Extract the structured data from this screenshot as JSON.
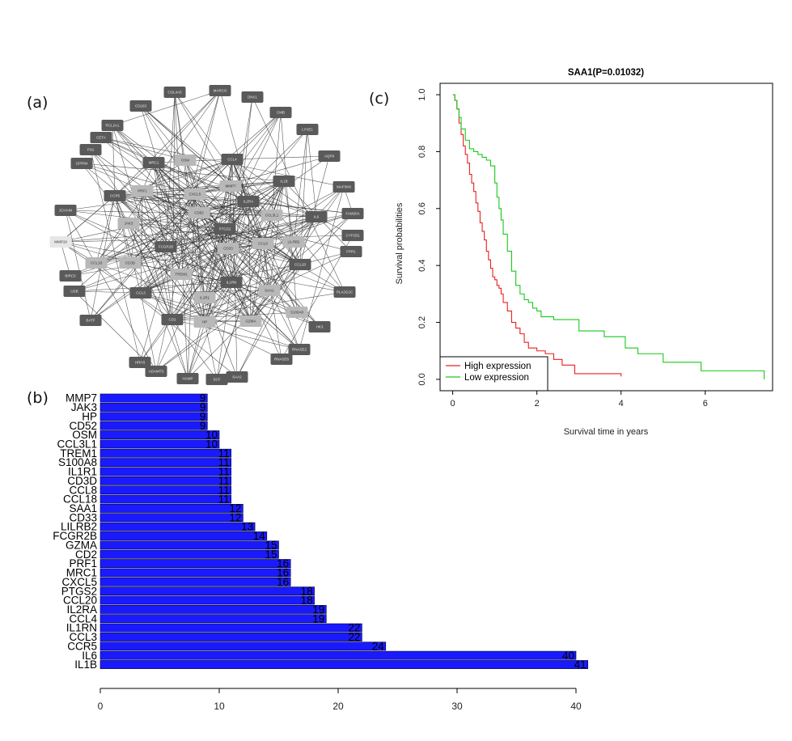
{
  "panels": {
    "a": "(a)",
    "b": "(b)",
    "c": "(c)"
  },
  "colors": {
    "bar_fill": "#1a1aff",
    "bar_stroke": "#000033",
    "node_dark": "#5a5a5a",
    "node_light": "#b8b8b8",
    "node_lightest": "#e6e6e6",
    "edge": "#333333",
    "high_expression": "#e8201f",
    "low_expression": "#19c919"
  },
  "network": {
    "nodes": [
      "COL4A5",
      "MARCO",
      "DKK1",
      "CMB",
      "LYVE1",
      "AQP9",
      "MAP3K8",
      "FAM20A",
      "CYP1B1",
      "FPR1",
      "CCL20",
      "PLA2G2C",
      "HK3",
      "RNASE2",
      "RNASE6",
      "SAA2",
      "SCF",
      "HAMP",
      "ADAMTS",
      "HRH3",
      "BATF",
      "USB",
      "BIRC5",
      "MMP19",
      "JCHAIN",
      "GPR84",
      "FN1",
      "CETA",
      "RCL2A1",
      "CD163",
      "MRC1",
      "OSM",
      "CCL4",
      "IL1B",
      "MMP7",
      "IL2RA",
      "CCL3L1",
      "IL6",
      "LILRB2",
      "CCL8",
      "CD33",
      "PTGS2",
      "CD52",
      "CXCL5",
      "PRF1",
      "CCR5",
      "JAK3",
      "FCGR2B",
      "CCL18",
      "CD3D",
      "TREM1",
      "CCL3",
      "IL1RN",
      "IL1R1",
      "SAA1",
      "S100A8",
      "GZMA",
      "HP",
      "CD2"
    ]
  },
  "chart_data": [
    {
      "type": "bar",
      "orientation": "horizontal",
      "categories": [
        "MMP7",
        "JAK3",
        "HP",
        "CD52",
        "OSM",
        "CCL3L1",
        "TREM1",
        "S100A8",
        "IL1R1",
        "CD3D",
        "CCL8",
        "CCL18",
        "SAA1",
        "CD33",
        "LILRB2",
        "FCGR2B",
        "GZMA",
        "CD2",
        "PRF1",
        "MRC1",
        "CXCL5",
        "PTGS2",
        "CCL20",
        "IL2RA",
        "CCL4",
        "IL1RN",
        "CCL3",
        "CCR5",
        "IL6",
        "IL1B"
      ],
      "values": [
        9,
        9,
        9,
        9,
        10,
        10,
        11,
        11,
        11,
        11,
        11,
        11,
        12,
        12,
        13,
        14,
        15,
        15,
        16,
        16,
        16,
        18,
        18,
        19,
        19,
        22,
        22,
        24,
        40,
        41
      ],
      "labels": [
        "9",
        "9",
        "9",
        "9",
        "10",
        "10",
        "11",
        "11",
        "11",
        "11",
        "11",
        "11",
        "12",
        "12",
        "13",
        "14",
        "15",
        "15",
        "16",
        "16",
        "16",
        "18",
        "18",
        "19",
        "19",
        "22",
        "22",
        "24",
        "40",
        "41"
      ],
      "xlim": [
        0,
        41
      ],
      "x_ticks": [
        "0",
        "10",
        "20",
        "30",
        "40"
      ],
      "grid": false
    },
    {
      "type": "line",
      "subtype": "kaplan-meier",
      "title": "SAA1(P=0.01032)",
      "xlabel": "Survival time in years",
      "ylabel": "Survival probabilities",
      "xlim": [
        -0.3,
        7.6
      ],
      "ylim": [
        -0.04,
        1.04
      ],
      "x_ticks": [
        "0",
        "2",
        "4",
        "6"
      ],
      "y_ticks": [
        "0.0",
        "0.2",
        "0.4",
        "0.6",
        "0.8",
        "1.0"
      ],
      "legend_position": "bottom-left",
      "series": [
        {
          "name": "High expression",
          "x": [
            0,
            0.05,
            0.1,
            0.15,
            0.2,
            0.25,
            0.3,
            0.35,
            0.4,
            0.45,
            0.5,
            0.55,
            0.6,
            0.65,
            0.7,
            0.75,
            0.8,
            0.85,
            0.9,
            0.95,
            1.0,
            1.05,
            1.1,
            1.15,
            1.2,
            1.3,
            1.4,
            1.5,
            1.6,
            1.7,
            1.8,
            2.0,
            2.2,
            2.4,
            2.6,
            2.9,
            3.2,
            3.6,
            4.0
          ],
          "y": [
            1.0,
            0.98,
            0.95,
            0.9,
            0.86,
            0.82,
            0.79,
            0.76,
            0.72,
            0.69,
            0.66,
            0.62,
            0.59,
            0.55,
            0.52,
            0.49,
            0.45,
            0.42,
            0.39,
            0.36,
            0.35,
            0.33,
            0.32,
            0.3,
            0.27,
            0.24,
            0.2,
            0.18,
            0.16,
            0.13,
            0.11,
            0.1,
            0.09,
            0.07,
            0.05,
            0.02,
            0.02,
            0.02,
            0.01
          ]
        },
        {
          "name": "Low expression",
          "x": [
            0,
            0.05,
            0.1,
            0.15,
            0.2,
            0.3,
            0.4,
            0.5,
            0.6,
            0.7,
            0.8,
            0.9,
            1.0,
            1.05,
            1.1,
            1.15,
            1.2,
            1.3,
            1.4,
            1.5,
            1.6,
            1.7,
            1.8,
            1.9,
            2.0,
            2.1,
            2.4,
            2.8,
            3.0,
            3.4,
            3.6,
            4.1,
            4.4,
            5.0,
            5.8,
            5.9,
            6.5,
            7.2,
            7.4
          ],
          "y": [
            1.0,
            0.98,
            0.95,
            0.92,
            0.88,
            0.84,
            0.81,
            0.8,
            0.79,
            0.78,
            0.77,
            0.75,
            0.69,
            0.64,
            0.6,
            0.56,
            0.51,
            0.45,
            0.38,
            0.33,
            0.3,
            0.28,
            0.27,
            0.25,
            0.24,
            0.22,
            0.21,
            0.21,
            0.17,
            0.17,
            0.15,
            0.11,
            0.09,
            0.06,
            0.06,
            0.03,
            0.03,
            0.03,
            0.0
          ]
        }
      ]
    }
  ]
}
